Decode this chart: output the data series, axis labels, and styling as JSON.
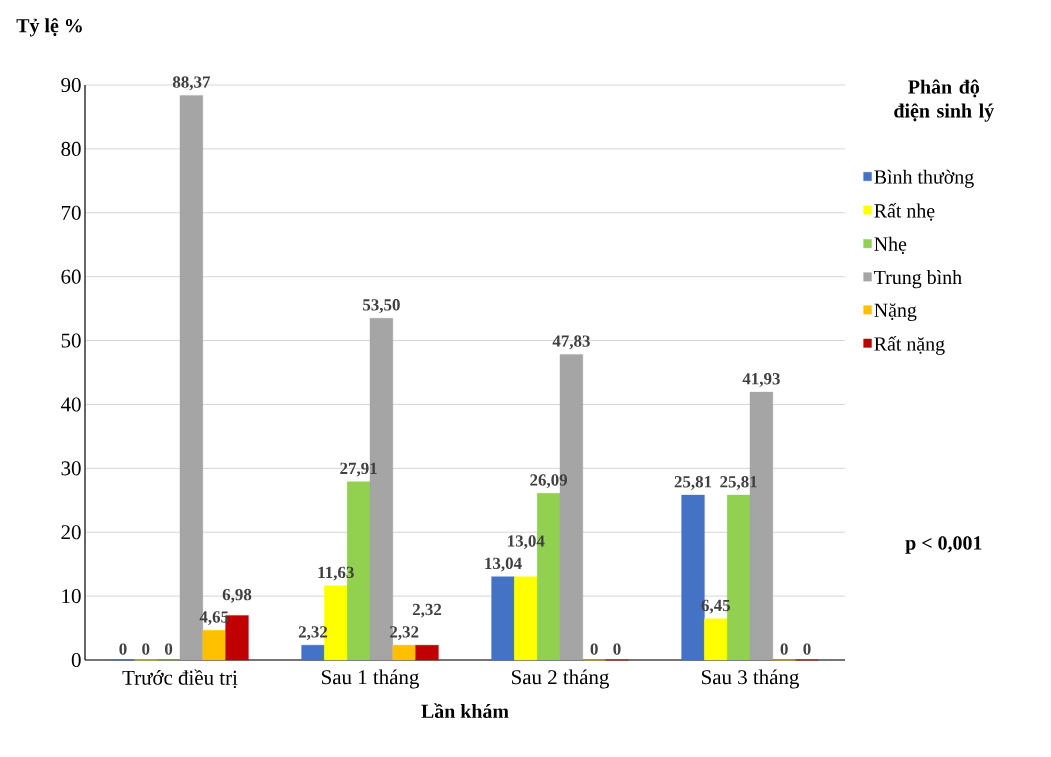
{
  "chart_data": {
    "type": "bar",
    "ylabel": "Tỷ lệ %",
    "xlabel": "Lần khám",
    "legend_title": "Phân độ điện sinh lý",
    "annotations": [
      "p < 0,001"
    ],
    "categories": [
      "Trước điều trị",
      "Sau 1 tháng",
      "Sau 2 tháng",
      "Sau 3 tháng"
    ],
    "series": [
      {
        "name": "Bình thường",
        "color": "#4472c4",
        "values": [
          0,
          2.32,
          13.04,
          25.81
        ],
        "value_labels": [
          "0",
          "2,32",
          "13,04",
          "25,81"
        ]
      },
      {
        "name": "Rất nhẹ",
        "color": "#ffff00",
        "values": [
          0,
          11.63,
          13.04,
          6.45
        ],
        "value_labels": [
          "0",
          "11,63",
          "13,04",
          "6,45"
        ]
      },
      {
        "name": "Nhẹ",
        "color": "#92d050",
        "values": [
          0,
          27.91,
          26.09,
          25.81
        ],
        "value_labels": [
          "0",
          "27,91",
          "26,09",
          "25,81"
        ]
      },
      {
        "name": "Trung bình",
        "color": "#a5a5a5",
        "values": [
          88.37,
          53.5,
          47.83,
          41.93
        ],
        "value_labels": [
          "88,37",
          "53,50",
          "47,83",
          "41,93"
        ]
      },
      {
        "name": "Nặng",
        "color": "#ffc000",
        "values": [
          4.65,
          2.32,
          0,
          0
        ],
        "value_labels": [
          "4,65",
          "2,32",
          "0",
          "0"
        ]
      },
      {
        "name": "Rất nặng",
        "color": "#c00000",
        "values": [
          6.98,
          2.32,
          0,
          0
        ],
        "value_labels": [
          "6,98",
          "2,32",
          "0",
          "0"
        ]
      }
    ],
    "ylim": [
      0,
      90
    ],
    "yticks": [
      0,
      10,
      20,
      30,
      40,
      50,
      60,
      70,
      80,
      90
    ],
    "grid": "y",
    "legend": "right"
  }
}
